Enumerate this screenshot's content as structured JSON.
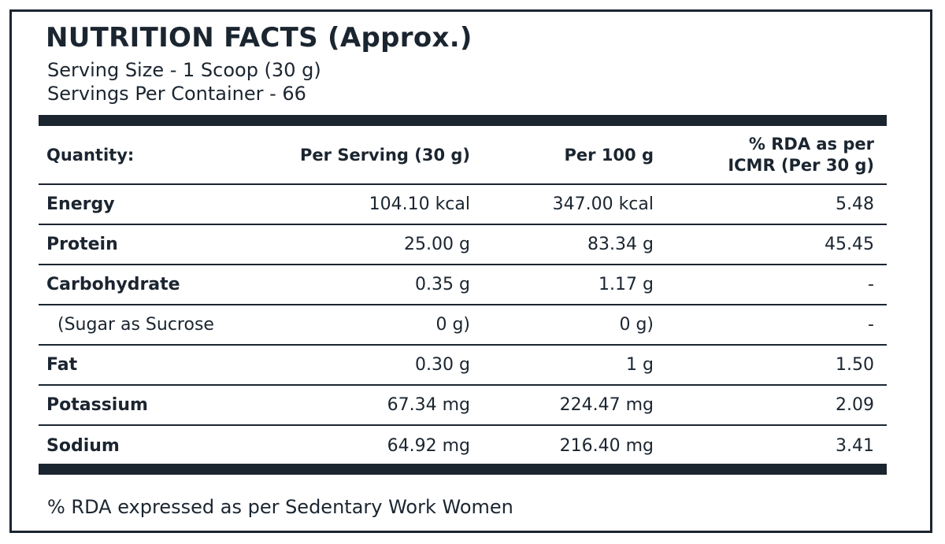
{
  "title": "NUTRITION FACTS (Approx.)",
  "serving_size": "Serving Size - 1 Scoop (30 g)",
  "servings_per_container": "Servings Per Container - 66",
  "table": {
    "headers": {
      "quantity": "Quantity:",
      "per_serving": "Per Serving (30 g)",
      "per_100g": "Per 100 g",
      "rda": "% RDA as per ICMR (Per 30 g)"
    },
    "rows": [
      {
        "label": "Energy",
        "per_serving": "104.10 kcal",
        "per_100g": "347.00 kcal",
        "rda": "5.48"
      },
      {
        "label": "Protein",
        "per_serving": "25.00 g",
        "per_100g": "83.34 g",
        "rda": "45.45"
      },
      {
        "label": "Carbohydrate",
        "per_serving": "0.35 g",
        "per_100g": "1.17 g",
        "rda": "-"
      },
      {
        "label": "(Sugar as Sucrose",
        "per_serving": "0 g)",
        "per_100g": "0 g)",
        "rda": "-"
      },
      {
        "label": "Fat",
        "per_serving": "0.30 g",
        "per_100g": "1 g",
        "rda": "1.50"
      },
      {
        "label": "Potassium",
        "per_serving": "67.34 mg",
        "per_100g": "224.47 mg",
        "rda": "2.09"
      },
      {
        "label": "Sodium",
        "per_serving": "64.92 mg",
        "per_100g": "216.40 mg",
        "rda": "3.41"
      }
    ]
  },
  "footnote": "% RDA expressed as per Sedentary Work Women",
  "colors": {
    "ink": "#1b2530",
    "background": "#ffffff"
  }
}
